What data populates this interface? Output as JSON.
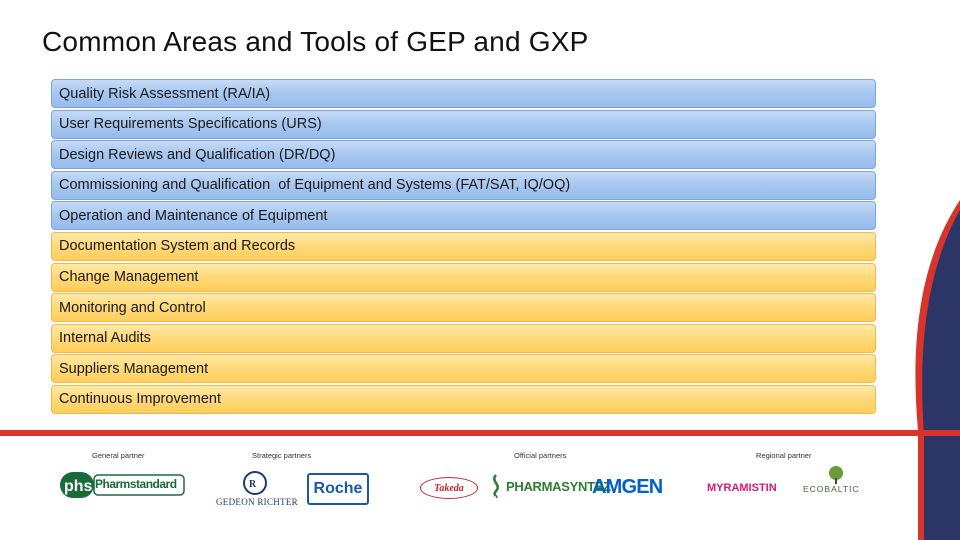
{
  "title": "Common Areas and Tools of GEP and GXP",
  "items": [
    {
      "label": "Quality Risk Assessment (RA/IA)",
      "color": "blue"
    },
    {
      "label": "User Requirements Specifications (URS)",
      "color": "blue"
    },
    {
      "label": "Design Reviews and Qualification (DR/DQ)",
      "color": "blue"
    },
    {
      "label": "Commissioning and Qualification  of Equipment and Systems (FAT/SAT, IQ/OQ)",
      "color": "blue"
    },
    {
      "label": "Operation and Maintenance of Equipment",
      "color": "blue"
    },
    {
      "label": "Documentation System and Records",
      "color": "yellow"
    },
    {
      "label": "Change Management",
      "color": "yellow"
    },
    {
      "label": "Monitoring and Control",
      "color": "yellow"
    },
    {
      "label": "Internal Audits",
      "color": "yellow"
    },
    {
      "label": "Suppliers Management",
      "color": "yellow"
    },
    {
      "label": "Continuous Improvement",
      "color": "yellow"
    }
  ],
  "partners": {
    "general": "General partner",
    "strategic": "Strategic partners",
    "official": "Official partners",
    "regional": "Regional partner"
  },
  "logos": {
    "pharmstandard": "Pharmstandard",
    "gedeon_richter": "GEDEON RICHTER",
    "roche": "Roche",
    "takeda": "Takeda",
    "pharmasyntez": "PHARMASYNTEZ",
    "amgen": "AMGEN",
    "myramistin": "MYRAMISTIN",
    "ecobaltic": "ECOBALTIC"
  },
  "colors": {
    "accent_red": "#d8342b",
    "corner_navy": "#2b3566",
    "blue_item": "#a9c8f0",
    "yellow_item": "#ffd978"
  }
}
